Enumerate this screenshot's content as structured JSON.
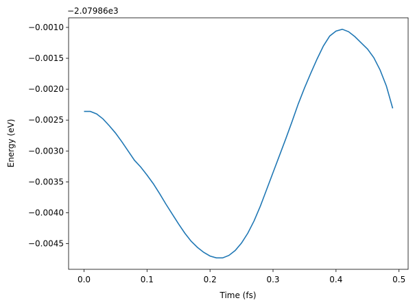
{
  "chart_data": {
    "type": "line",
    "offset_text": "−2.07986e3",
    "x_label": "Time (fs)",
    "y_label": "Energy (eV)",
    "x": [
      0,
      0.01,
      0.02,
      0.03,
      0.04,
      0.05,
      0.06,
      0.07,
      0.08,
      0.09,
      0.1,
      0.11,
      0.12,
      0.13,
      0.14,
      0.15,
      0.16,
      0.17,
      0.18,
      0.19,
      0.2,
      0.21,
      0.22,
      0.23,
      0.24,
      0.25,
      0.26,
      0.27,
      0.28,
      0.29,
      0.3,
      0.31,
      0.32,
      0.33,
      0.34,
      0.35,
      0.36,
      0.37,
      0.38,
      0.39,
      0.4,
      0.41,
      0.42,
      0.43,
      0.44,
      0.45,
      0.46,
      0.47,
      0.48,
      0.49
    ],
    "series": [
      {
        "color": "#1f77b4",
        "values": [
          -0.00236,
          -0.00236,
          -0.0024,
          -0.00248,
          -0.00259,
          -0.00271,
          -0.00285,
          -0.003,
          -0.00315,
          -0.00326,
          -0.00339,
          -0.00353,
          -0.00369,
          -0.00386,
          -0.00402,
          -0.00418,
          -0.00433,
          -0.00446,
          -0.00456,
          -0.00464,
          -0.0047,
          -0.00473,
          -0.00473,
          -0.00469,
          -0.00461,
          -0.00449,
          -0.00433,
          -0.00413,
          -0.00389,
          -0.00362,
          -0.00335,
          -0.00308,
          -0.00281,
          -0.00253,
          -0.00224,
          -0.00198,
          -0.00174,
          -0.00151,
          -0.0013,
          -0.00114,
          -0.00106,
          -0.00103,
          -0.00107,
          -0.00115,
          -0.00125,
          -0.00135,
          -0.00149,
          -0.00169,
          -0.00195,
          -0.00231
        ]
      }
    ],
    "xlim": [
      -0.0245,
      0.5145
    ],
    "xticks": [
      {
        "value": 0,
        "label": "0.0"
      },
      0.1,
      0.2,
      0.3,
      0.4,
      0.5
    ],
    "ylim": [
      -0.004915,
      -0.000845
    ],
    "yticks": [
      {
        "value": -0.0045,
        "label": "−0.0045"
      },
      {
        "value": -0.004,
        "label": "−0.0040"
      },
      {
        "value": -0.0035,
        "label": "−0.0035"
      },
      {
        "value": -0.003,
        "label": "−0.0030"
      },
      {
        "value": -0.0025,
        "label": "−0.0025"
      },
      {
        "value": -0.002,
        "label": "−0.0020"
      },
      {
        "value": -0.0015,
        "label": "−0.0015"
      },
      {
        "value": -0.001,
        "label": "−0.0010"
      }
    ],
    "grid": false
  }
}
